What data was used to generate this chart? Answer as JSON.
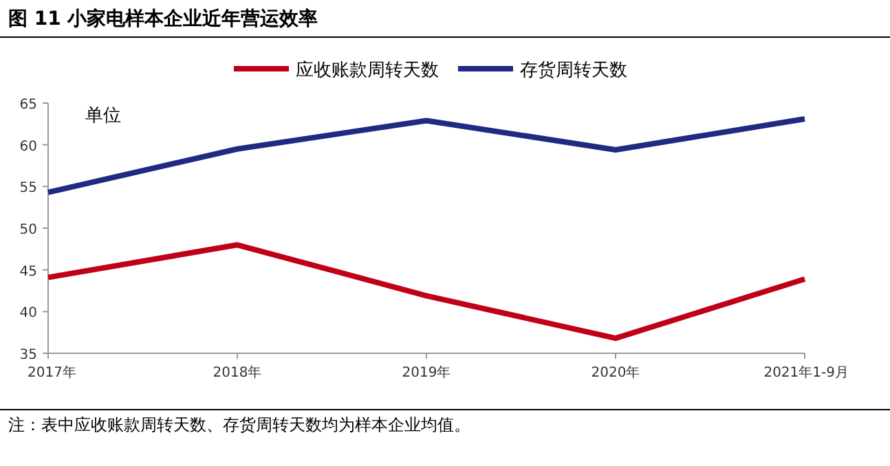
{
  "chart_data": {
    "type": "line",
    "title": "图 11  小家电样本企业近年营运效率",
    "ylabel": "单位",
    "categories": [
      "2017年",
      "2018年",
      "2019年",
      "2020年",
      "2021年1-9月"
    ],
    "series": [
      {
        "name": "应收账款周转天数",
        "color": "#c00018",
        "values": [
          44.1,
          48.0,
          41.9,
          36.8,
          43.9
        ]
      },
      {
        "name": "存货周转天数",
        "color": "#1f2a80",
        "values": [
          54.3,
          59.5,
          62.9,
          59.4,
          63.1
        ]
      }
    ],
    "ylim": [
      35,
      65
    ],
    "yticks": [
      35,
      40,
      45,
      50,
      55,
      60,
      65
    ],
    "grid": false,
    "legend": "top",
    "marker": "none",
    "line_style": "solid",
    "annotations": [
      "注：表中应收账款周转天数、存货周转天数均为样本企业均值。"
    ]
  }
}
